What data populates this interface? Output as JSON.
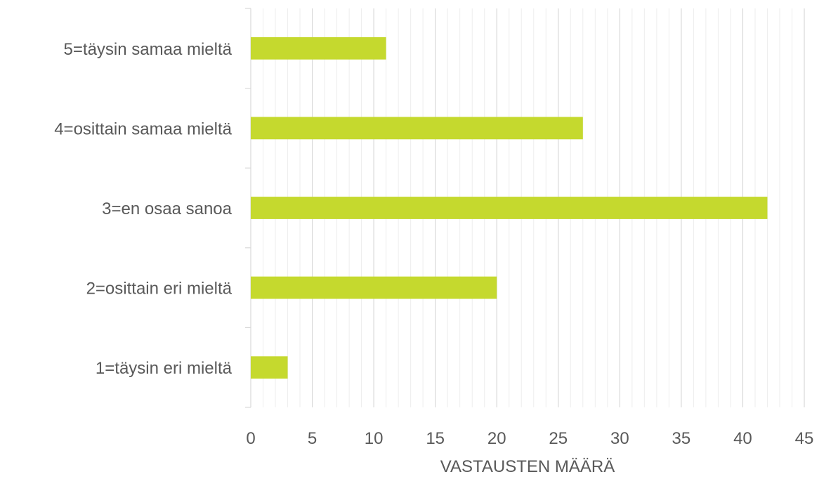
{
  "chart_data": {
    "type": "bar",
    "orientation": "horizontal",
    "categories": [
      "5=täysin samaa mieltä",
      "4=osittain samaa mieltä",
      "3=en osaa sanoa",
      "2=osittain eri mieltä",
      "1=täysin eri mieltä"
    ],
    "values": [
      11,
      27,
      42,
      20,
      3
    ],
    "xlabel": "VASTAUSTEN MÄÄRÄ",
    "xlim": [
      0,
      45
    ],
    "xticks": [
      "0",
      "5",
      "10",
      "15",
      "20",
      "25",
      "30",
      "35",
      "40",
      "45"
    ],
    "bar_color": "#c5d92e",
    "grid": true,
    "legend": "none"
  }
}
